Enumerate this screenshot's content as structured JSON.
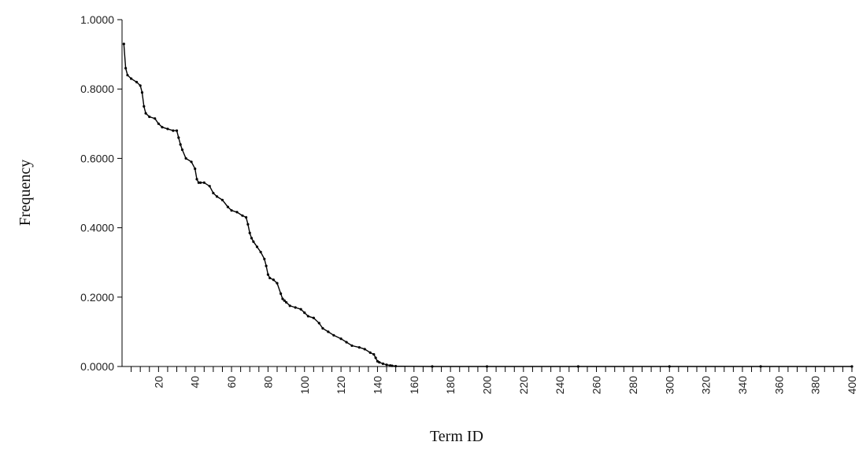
{
  "chart_data": {
    "type": "line",
    "title": "",
    "xlabel": "Term ID",
    "ylabel": "Frequency",
    "xlim": [
      0,
      400
    ],
    "ylim": [
      0,
      1
    ],
    "grid": false,
    "y_ticks": [
      {
        "value": 0.0,
        "label": "0.0000"
      },
      {
        "value": 0.2,
        "label": "0.2000"
      },
      {
        "value": 0.4,
        "label": "0.4000"
      },
      {
        "value": 0.6,
        "label": "0.6000"
      },
      {
        "value": 0.8,
        "label": "0.8000"
      },
      {
        "value": 1.0,
        "label": "1.0000"
      }
    ],
    "x_ticks": [
      {
        "value": 20,
        "label": "20"
      },
      {
        "value": 40,
        "label": "40"
      },
      {
        "value": 60,
        "label": "60"
      },
      {
        "value": 80,
        "label": "80"
      },
      {
        "value": 100,
        "label": "100"
      },
      {
        "value": 120,
        "label": "120"
      },
      {
        "value": 140,
        "label": "140"
      },
      {
        "value": 160,
        "label": "160"
      },
      {
        "value": 180,
        "label": "180"
      },
      {
        "value": 200,
        "label": "200"
      },
      {
        "value": 220,
        "label": "220"
      },
      {
        "value": 240,
        "label": "240"
      },
      {
        "value": 260,
        "label": "260"
      },
      {
        "value": 280,
        "label": "280"
      },
      {
        "value": 300,
        "label": "300"
      },
      {
        "value": 320,
        "label": "320"
      },
      {
        "value": 340,
        "label": "340"
      },
      {
        "value": 360,
        "label": "360"
      },
      {
        "value": 380,
        "label": "380"
      },
      {
        "value": 400,
        "label": "400"
      }
    ],
    "series": [
      {
        "x": [
          1,
          2,
          3,
          5,
          8,
          10,
          11,
          12,
          13,
          15,
          18,
          20,
          22,
          25,
          28,
          30,
          31,
          32,
          33,
          35,
          38,
          40,
          41,
          42,
          43,
          45,
          48,
          50,
          52,
          55,
          58,
          60,
          63,
          66,
          68,
          69,
          70,
          71,
          72,
          74,
          76,
          78,
          79,
          80,
          81,
          83,
          85,
          87,
          88,
          89,
          90,
          92,
          95,
          98,
          100,
          102,
          105,
          108,
          110,
          113,
          116,
          120,
          123,
          126,
          130,
          133,
          136,
          138,
          139,
          140,
          141,
          143,
          145,
          147,
          148,
          150,
          170,
          200,
          250,
          300,
          350,
          400
        ],
        "y": [
          0.93,
          0.86,
          0.84,
          0.83,
          0.82,
          0.81,
          0.79,
          0.75,
          0.73,
          0.72,
          0.715,
          0.7,
          0.69,
          0.685,
          0.68,
          0.68,
          0.66,
          0.64,
          0.625,
          0.6,
          0.59,
          0.57,
          0.54,
          0.53,
          0.53,
          0.53,
          0.52,
          0.5,
          0.49,
          0.48,
          0.46,
          0.45,
          0.445,
          0.435,
          0.43,
          0.41,
          0.385,
          0.37,
          0.36,
          0.345,
          0.33,
          0.31,
          0.29,
          0.265,
          0.255,
          0.25,
          0.24,
          0.21,
          0.195,
          0.19,
          0.185,
          0.175,
          0.17,
          0.165,
          0.155,
          0.145,
          0.14,
          0.125,
          0.11,
          0.1,
          0.09,
          0.08,
          0.07,
          0.06,
          0.055,
          0.05,
          0.04,
          0.035,
          0.025,
          0.015,
          0.012,
          0.008,
          0.005,
          0.003,
          0.002,
          0.001,
          0.0,
          0.0,
          0.0,
          0.0,
          0.0,
          0.0
        ]
      }
    ]
  }
}
